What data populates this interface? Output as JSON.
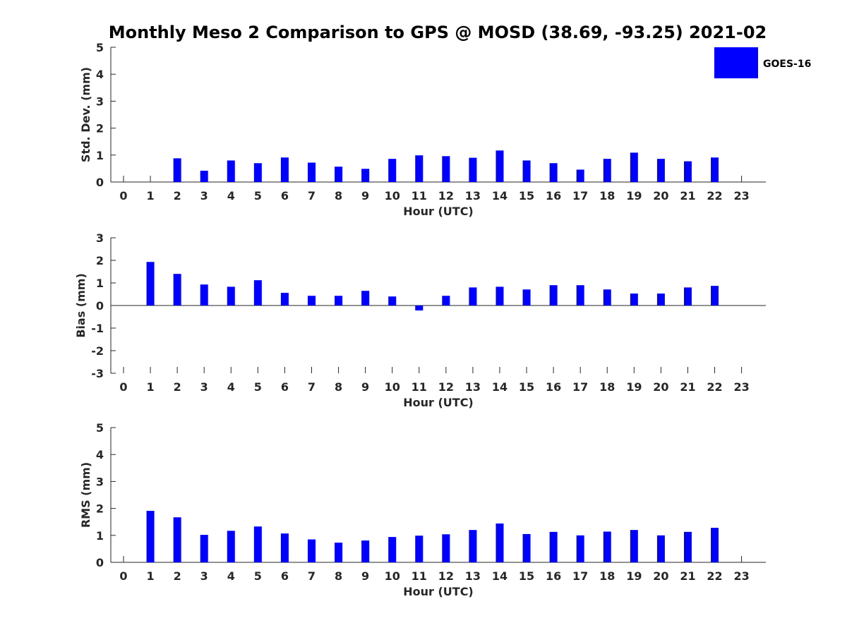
{
  "title": "Monthly Meso 2 Comparison to GPS @ MOSD (38.69, -93.25) 2021-02",
  "legend": {
    "label": "GOES-16",
    "color": "#0000ff"
  },
  "chart_data": [
    {
      "type": "bar",
      "name": "std-dev",
      "xlabel": "Hour (UTC)",
      "ylabel": "Std. Dev. (mm)",
      "categories": [
        "0",
        "1",
        "2",
        "3",
        "4",
        "5",
        "6",
        "7",
        "8",
        "9",
        "10",
        "11",
        "12",
        "13",
        "14",
        "15",
        "16",
        "17",
        "18",
        "19",
        "20",
        "21",
        "22",
        "23"
      ],
      "values": [
        null,
        null,
        0.88,
        0.42,
        0.8,
        0.7,
        0.91,
        0.72,
        0.57,
        0.49,
        0.86,
        0.99,
        0.96,
        0.9,
        1.17,
        0.8,
        0.7,
        0.46,
        0.86,
        1.09,
        0.86,
        0.77,
        0.91,
        null
      ],
      "ylim": [
        0,
        5
      ],
      "yticks": [
        "0",
        "1",
        "2",
        "3",
        "4",
        "5"
      ],
      "series": [
        {
          "name": "GOES-16",
          "color": "#0000ff"
        }
      ]
    },
    {
      "type": "bar",
      "name": "bias",
      "xlabel": "Hour (UTC)",
      "ylabel": "Bias (mm)",
      "categories": [
        "0",
        "1",
        "2",
        "3",
        "4",
        "5",
        "6",
        "7",
        "8",
        "9",
        "10",
        "11",
        "12",
        "13",
        "14",
        "15",
        "16",
        "17",
        "18",
        "19",
        "20",
        "21",
        "22",
        "23"
      ],
      "values": [
        null,
        1.93,
        1.4,
        0.93,
        0.83,
        1.12,
        0.56,
        0.43,
        0.43,
        0.65,
        0.4,
        -0.22,
        0.43,
        0.8,
        0.83,
        0.71,
        0.9,
        0.9,
        0.71,
        0.53,
        0.53,
        0.8,
        0.87,
        null
      ],
      "ylim": [
        -3,
        3
      ],
      "yticks": [
        "-3",
        "-2",
        "-1",
        "0",
        "1",
        "2",
        "3"
      ],
      "series": [
        {
          "name": "GOES-16",
          "color": "#0000ff"
        }
      ]
    },
    {
      "type": "bar",
      "name": "rms",
      "xlabel": "Hour (UTC)",
      "ylabel": "RMS (mm)",
      "categories": [
        "0",
        "1",
        "2",
        "3",
        "4",
        "5",
        "6",
        "7",
        "8",
        "9",
        "10",
        "11",
        "12",
        "13",
        "14",
        "15",
        "16",
        "17",
        "18",
        "19",
        "20",
        "21",
        "22",
        "23"
      ],
      "values": [
        null,
        1.91,
        1.67,
        1.02,
        1.17,
        1.33,
        1.07,
        0.85,
        0.73,
        0.81,
        0.94,
        0.99,
        1.04,
        1.2,
        1.44,
        1.05,
        1.13,
        1.0,
        1.14,
        1.2,
        1.0,
        1.13,
        1.28,
        null
      ],
      "ylim": [
        0,
        5
      ],
      "yticks": [
        "0",
        "1",
        "2",
        "3",
        "4",
        "5"
      ],
      "series": [
        {
          "name": "GOES-16",
          "color": "#0000ff"
        }
      ]
    }
  ]
}
